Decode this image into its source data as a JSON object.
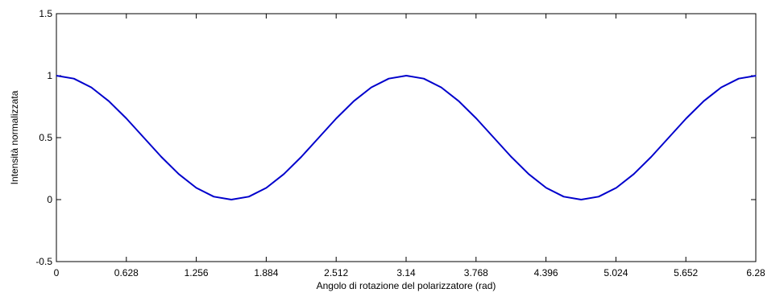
{
  "chart_data": {
    "type": "line",
    "xlabel": "Angolo di rotazione del polarizzatore (rad)",
    "ylabel": "Intensità normalizzata",
    "xlim": [
      0,
      6.28
    ],
    "ylim": [
      -0.5,
      1.5
    ],
    "xticks": [
      0,
      0.628,
      1.256,
      1.884,
      2.512,
      3.14,
      3.768,
      4.396,
      5.024,
      5.652,
      6.28
    ],
    "xtick_labels": [
      "0",
      "0.628",
      "1.256",
      "1.884",
      "2.512",
      "3.14",
      "3.768",
      "4.396",
      "5.024",
      "5.652",
      "6.28"
    ],
    "yticks": [
      -0.5,
      0,
      0.5,
      1,
      1.5
    ],
    "ytick_labels": [
      "-0.5",
      "0",
      "0.5",
      "1",
      "1.5"
    ],
    "grid": false,
    "series": [
      {
        "color": "#0000cc",
        "x": [
          0,
          0.157,
          0.314,
          0.471,
          0.628,
          0.785,
          0.942,
          1.099,
          1.256,
          1.413,
          1.571,
          1.728,
          1.885,
          2.042,
          2.199,
          2.356,
          2.513,
          2.67,
          2.827,
          2.984,
          3.142,
          3.299,
          3.456,
          3.613,
          3.77,
          3.927,
          4.084,
          4.241,
          4.398,
          4.555,
          4.712,
          4.869,
          5.027,
          5.184,
          5.341,
          5.498,
          5.655,
          5.812,
          5.969,
          6.126,
          6.283
        ],
        "y": [
          1.0,
          0.976,
          0.905,
          0.794,
          0.655,
          0.5,
          0.345,
          0.206,
          0.095,
          0.024,
          0.0,
          0.024,
          0.095,
          0.206,
          0.345,
          0.5,
          0.655,
          0.794,
          0.905,
          0.976,
          1.0,
          0.976,
          0.905,
          0.794,
          0.655,
          0.5,
          0.345,
          0.206,
          0.095,
          0.024,
          0.0,
          0.024,
          0.095,
          0.206,
          0.345,
          0.5,
          0.655,
          0.794,
          0.905,
          0.976,
          1.0
        ]
      }
    ]
  }
}
